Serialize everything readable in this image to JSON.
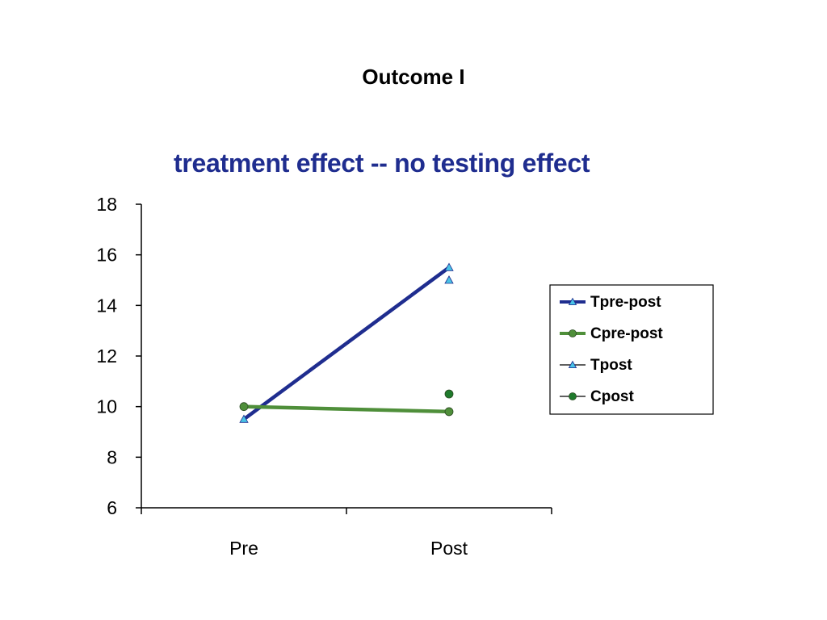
{
  "slide": {
    "title": "Outcome I"
  },
  "chart_data": {
    "type": "line",
    "title": "treatment effect -- no testing effect",
    "title_color": "#1f2d8f",
    "categories": [
      "Pre",
      "Post"
    ],
    "xlabel": "",
    "ylabel": "",
    "ylim": [
      6,
      18
    ],
    "yticks": [
      6,
      8,
      10,
      12,
      14,
      16,
      18
    ],
    "grid": false,
    "legend_position": "right",
    "series": [
      {
        "name": "Tpre-post",
        "values": [
          9.5,
          15.5
        ],
        "color": "#1f2d8f",
        "line": "thick",
        "marker": "triangle-icon"
      },
      {
        "name": "Cpre-post",
        "values": [
          10,
          9.8
        ],
        "color": "#4f8f3a",
        "line": "thick",
        "marker": "circle-icon"
      },
      {
        "name": "Tpost",
        "values": [
          null,
          15
        ],
        "color": "#49c3e6",
        "line": "none",
        "marker": "triangle-icon"
      },
      {
        "name": "Cpost",
        "values": [
          null,
          10.5
        ],
        "color": "#1f7a2c",
        "line": "none",
        "marker": "circle-icon"
      }
    ]
  }
}
